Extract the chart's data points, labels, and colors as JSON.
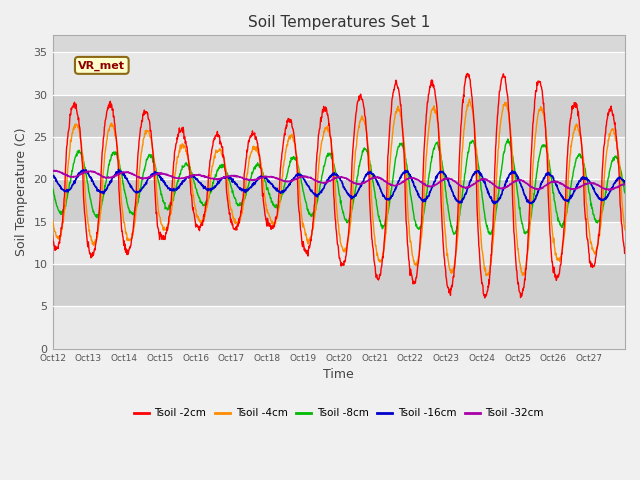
{
  "title": "Soil Temperatures Set 1",
  "xlabel": "Time",
  "ylabel": "Soil Temperature (C)",
  "ylim": [
    0,
    37
  ],
  "yticks": [
    0,
    5,
    10,
    15,
    20,
    25,
    30,
    35
  ],
  "fig_bg": "#f0f0f0",
  "plot_bg": "#d8d8d8",
  "stripe_light": "#e8e8e8",
  "stripe_dark": "#d0d0d0",
  "colors": {
    "tsoil_2cm": "#ff0000",
    "tsoil_4cm": "#ff8c00",
    "tsoil_8cm": "#00bb00",
    "tsoil_16cm": "#0000cc",
    "tsoil_32cm": "#aa00aa"
  },
  "legend_labels": [
    "Tsoil -2cm",
    "Tsoil -4cm",
    "Tsoil -8cm",
    "Tsoil -16cm",
    "Tsoil -32cm"
  ],
  "annotation_text": "VR_met",
  "xtick_labels": [
    "Oct 12",
    "Oct 13",
    "Oct 14",
    "Oct 15",
    "Oct 16",
    "Oct 17",
    "Oct 18",
    "Oct 19",
    "Oct 20",
    "Oct 21",
    "Oct 22",
    "Oct 23",
    "Oct 24",
    "Oct 25",
    "Oct 26",
    "Oct 27"
  ],
  "n_days": 16,
  "points_per_day": 96
}
